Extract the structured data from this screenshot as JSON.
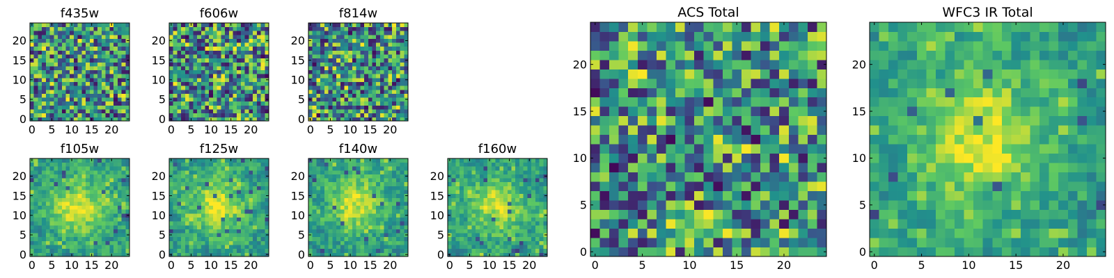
{
  "chart_data": [
    {
      "id": "f435w",
      "type": "heatmap",
      "title": "f435w",
      "xticks": [
        "0",
        "5",
        "10",
        "15",
        "20"
      ],
      "yticks": [
        "0",
        "5",
        "10",
        "15",
        "20"
      ],
      "xlim": [
        -0.5,
        24.5
      ],
      "ylim": [
        -0.5,
        24.5
      ],
      "grid": false,
      "n_pixels": 25,
      "pattern": "noise",
      "seed": 11
    },
    {
      "id": "f606w",
      "type": "heatmap",
      "title": "f606w",
      "xticks": [
        "0",
        "5",
        "10",
        "15",
        "20"
      ],
      "yticks": [
        "0",
        "5",
        "10",
        "15",
        "20"
      ],
      "xlim": [
        -0.5,
        24.5
      ],
      "ylim": [
        -0.5,
        24.5
      ],
      "grid": false,
      "n_pixels": 25,
      "pattern": "noise",
      "seed": 23
    },
    {
      "id": "f814w",
      "type": "heatmap",
      "title": "f814w",
      "xticks": [
        "0",
        "5",
        "10",
        "15",
        "20"
      ],
      "yticks": [
        "0",
        "5",
        "10",
        "15",
        "20"
      ],
      "xlim": [
        -0.5,
        24.5
      ],
      "ylim": [
        -0.5,
        24.5
      ],
      "grid": false,
      "n_pixels": 25,
      "pattern": "noise",
      "seed": 37
    },
    {
      "id": "f105w",
      "type": "heatmap",
      "title": "f105w",
      "xticks": [
        "0",
        "5",
        "10",
        "15",
        "20"
      ],
      "yticks": [
        "0",
        "5",
        "10",
        "15",
        "20"
      ],
      "xlim": [
        -0.5,
        24.5
      ],
      "ylim": [
        -0.5,
        24.5
      ],
      "grid": false,
      "n_pixels": 25,
      "pattern": "source",
      "seed": 41
    },
    {
      "id": "f125w",
      "type": "heatmap",
      "title": "f125w",
      "xticks": [
        "0",
        "5",
        "10",
        "15",
        "20"
      ],
      "yticks": [
        "0",
        "5",
        "10",
        "15",
        "20"
      ],
      "xlim": [
        -0.5,
        24.5
      ],
      "ylim": [
        -0.5,
        24.5
      ],
      "grid": false,
      "n_pixels": 25,
      "pattern": "source",
      "seed": 53
    },
    {
      "id": "f140w",
      "type": "heatmap",
      "title": "f140w",
      "xticks": [
        "0",
        "5",
        "10",
        "15",
        "20"
      ],
      "yticks": [
        "0",
        "5",
        "10",
        "15",
        "20"
      ],
      "xlim": [
        -0.5,
        24.5
      ],
      "ylim": [
        -0.5,
        24.5
      ],
      "grid": false,
      "n_pixels": 25,
      "pattern": "source",
      "seed": 67
    },
    {
      "id": "f160w",
      "type": "heatmap",
      "title": "f160w",
      "xticks": [
        "0",
        "5",
        "10",
        "15",
        "20"
      ],
      "yticks": [
        "0",
        "5",
        "10",
        "15",
        "20"
      ],
      "xlim": [
        -0.5,
        24.5
      ],
      "ylim": [
        -0.5,
        24.5
      ],
      "grid": false,
      "n_pixels": 25,
      "pattern": "source",
      "seed": 79
    },
    {
      "id": "acs-total",
      "type": "heatmap",
      "title": "ACS Total",
      "xticks": [
        "0",
        "5",
        "10",
        "15",
        "20"
      ],
      "yticks": [
        "0",
        "5",
        "10",
        "15",
        "20"
      ],
      "xlim": [
        -0.5,
        24.5
      ],
      "ylim": [
        -0.5,
        24.5
      ],
      "grid": false,
      "n_pixels": 25,
      "pattern": "noise",
      "seed": 97
    },
    {
      "id": "wfc3-ir-total",
      "type": "heatmap",
      "title": "WFC3 IR Total",
      "xticks": [
        "0",
        "5",
        "10",
        "15",
        "20"
      ],
      "yticks": [
        "0",
        "5",
        "10",
        "15",
        "20"
      ],
      "xlim": [
        -0.5,
        24.5
      ],
      "ylim": [
        -0.5,
        24.5
      ],
      "grid": false,
      "n_pixels": 25,
      "pattern": "source",
      "seed": 113
    }
  ],
  "colormap": [
    "#440154",
    "#3b528b",
    "#21918c",
    "#5ec962",
    "#fde725"
  ]
}
